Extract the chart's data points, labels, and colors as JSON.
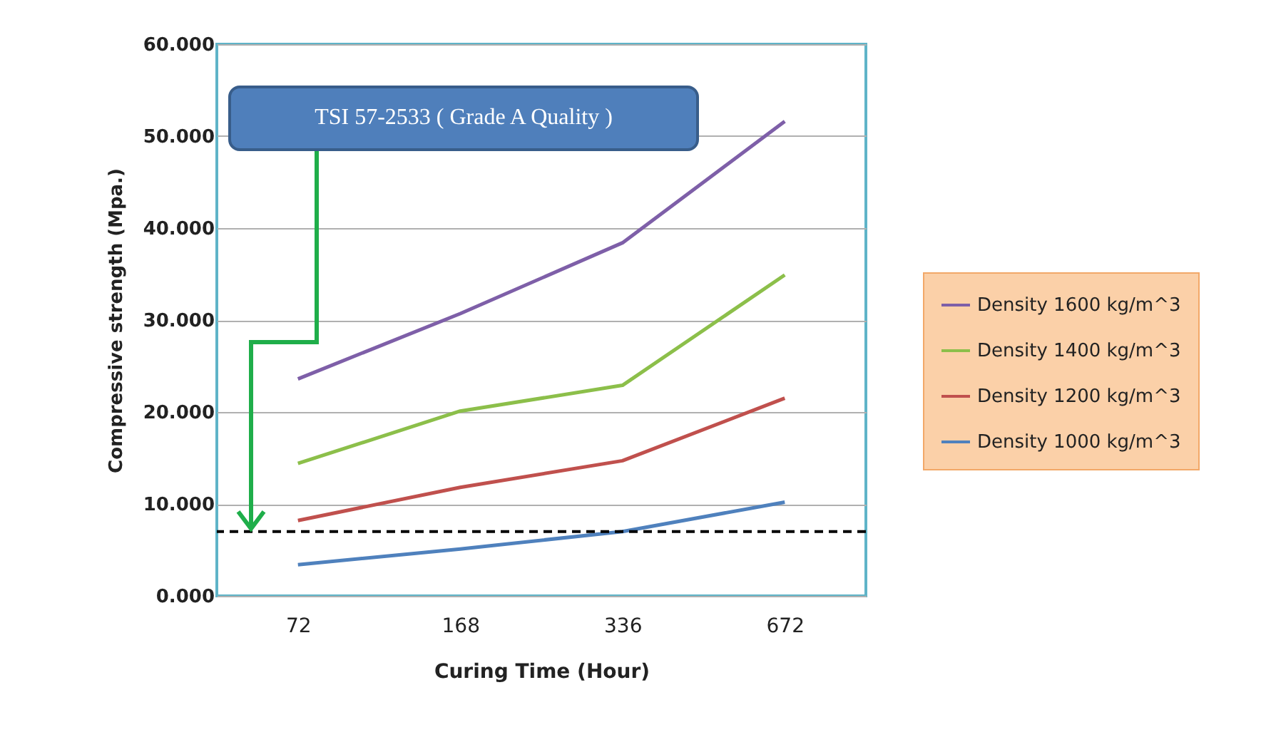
{
  "chart_data": {
    "type": "line",
    "xlabel": "Curing Time (Hour)",
    "ylabel": "Compressive strength (Mpa.)",
    "categories": [
      "72",
      "168",
      "336",
      "672"
    ],
    "ylim": [
      0,
      60
    ],
    "yticks": [
      {
        "value": 0,
        "label": "0.000"
      },
      {
        "value": 10,
        "label": "10.000"
      },
      {
        "value": 20,
        "label": "20.000"
      },
      {
        "value": 30,
        "label": "30.000"
      },
      {
        "value": 40,
        "label": "40.000"
      },
      {
        "value": 50,
        "label": "50.000"
      },
      {
        "value": 60,
        "label": "60.000"
      }
    ],
    "series": [
      {
        "name": "Density 1600 kg/m^3",
        "color": "#7e5fa8",
        "values": [
          23.6,
          30.7,
          38.4,
          51.6
        ]
      },
      {
        "name": "Density 1400 kg/m^3",
        "color": "#8cbf4a",
        "values": [
          14.4,
          20.1,
          22.9,
          34.9
        ]
      },
      {
        "name": "Density 1200 kg/m^3",
        "color": "#c0504d",
        "values": [
          8.2,
          11.8,
          14.7,
          21.5
        ]
      },
      {
        "name": "Density 1000 kg/m^3",
        "color": "#4f81bd",
        "values": [
          3.4,
          5.1,
          7.0,
          10.2
        ]
      }
    ],
    "ref_lines": [
      {
        "axis": "y",
        "value": 7,
        "label": "TSI 57-2533 ( Grade A Quality )",
        "color": "#000000",
        "line_style": "dashed"
      }
    ],
    "grid": "y",
    "legend": "right"
  }
}
